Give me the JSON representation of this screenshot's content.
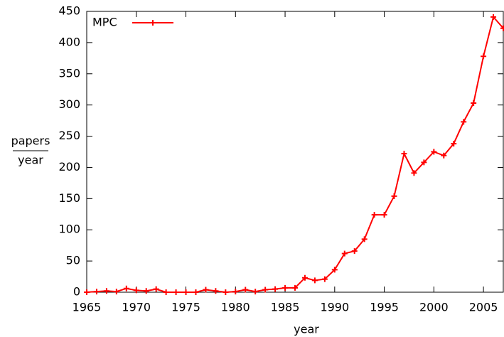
{
  "chart_data": {
    "type": "line",
    "xlabel": "year",
    "ylabel_numerator": "papers",
    "ylabel_denominator": "year",
    "x": [
      1965,
      1966,
      1967,
      1968,
      1969,
      1970,
      1971,
      1972,
      1973,
      1974,
      1975,
      1976,
      1977,
      1978,
      1979,
      1980,
      1981,
      1982,
      1983,
      1984,
      1985,
      1986,
      1987,
      1988,
      1989,
      1990,
      1991,
      1992,
      1993,
      1994,
      1995,
      1996,
      1997,
      1998,
      1999,
      2000,
      2001,
      2002,
      2003,
      2004,
      2005,
      2006,
      2007
    ],
    "series": [
      {
        "name": "MPC",
        "color": "#ff0000",
        "values": [
          0,
          1,
          2,
          1,
          6,
          3,
          2,
          5,
          0,
          0,
          0,
          0,
          4,
          2,
          0,
          1,
          4,
          1,
          4,
          5,
          7,
          7,
          23,
          19,
          21,
          36,
          62,
          66,
          85,
          124,
          124,
          154,
          222,
          191,
          208,
          225,
          219,
          238,
          273,
          303,
          378,
          441,
          423
        ]
      }
    ],
    "xlim": [
      1965,
      2007
    ],
    "xticks": [
      1965,
      1970,
      1975,
      1980,
      1985,
      1990,
      1995,
      2000,
      2005
    ],
    "ylim": [
      0,
      450
    ],
    "yticks": [
      0,
      50,
      100,
      150,
      200,
      250,
      300,
      350,
      400,
      450
    ],
    "legend": "upper left"
  }
}
